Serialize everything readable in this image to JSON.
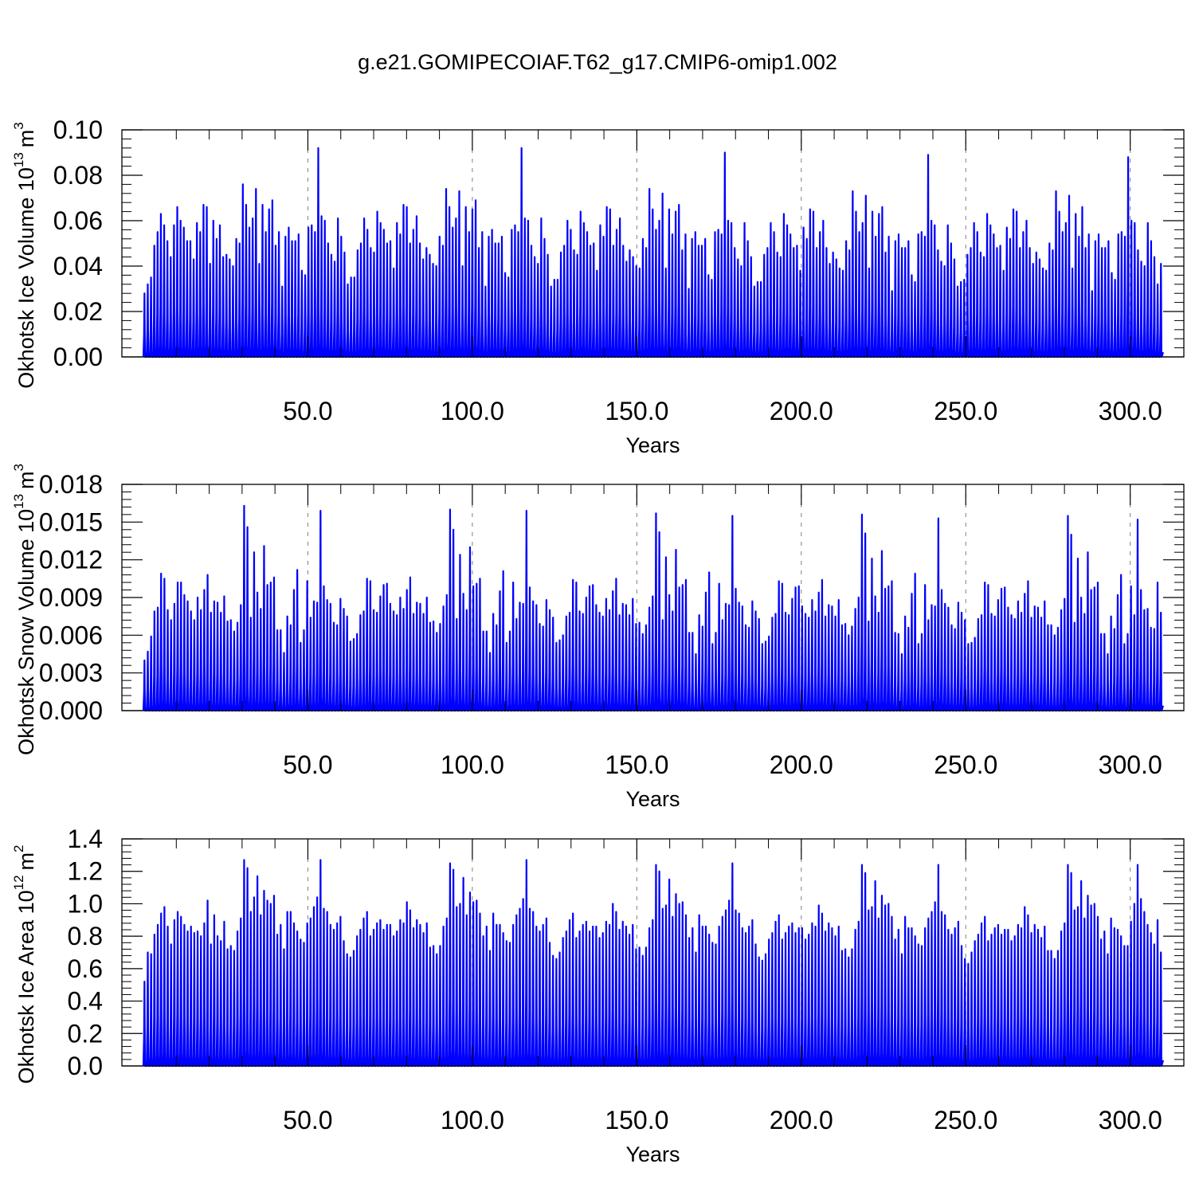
{
  "title": "g.e21.GOMIPECOIAF.T62_g17.CMIP6-omip1.002",
  "colors": {
    "series": "#0000ff",
    "axis": "#000000",
    "grid": "#808080",
    "background": "#ffffff"
  },
  "chart_data": [
    {
      "type": "line",
      "ylabel": "Okhotsk Ice Volume 10",
      "ylabel_exponent": "13",
      "ylabel_unit": "m",
      "ylabel_unit_exponent": "3",
      "xlabel": "Years",
      "xlim": [
        0,
        310
      ],
      "ylim": [
        0,
        0.1
      ],
      "yticks": [
        0.0,
        0.02,
        0.04,
        0.06,
        0.08,
        0.1
      ],
      "ytick_labels": [
        "0.00",
        "0.02",
        "0.04",
        "0.06",
        "0.08",
        "0.10"
      ],
      "xticks": [
        50,
        100,
        150,
        200,
        250,
        300
      ],
      "xtick_labels": [
        "50.0",
        "100.0",
        "150.0",
        "200.0",
        "250.0",
        "300.0"
      ],
      "grid": "dashed vertical at major x ticks",
      "annual_peaks": [
        0.028,
        0.032,
        0.035,
        0.049,
        0.055,
        0.063,
        0.058,
        0.051,
        0.044,
        0.058,
        0.066,
        0.06,
        0.057,
        0.051,
        0.051,
        0.043,
        0.059,
        0.055,
        0.067,
        0.066,
        0.041,
        0.06,
        0.052,
        0.058,
        0.044,
        0.045,
        0.043,
        0.04,
        0.052,
        0.05,
        0.076,
        0.067,
        0.057,
        0.061,
        0.074,
        0.041,
        0.067,
        0.055,
        0.065,
        0.069,
        0.049,
        0.055,
        0.031,
        0.053,
        0.057,
        0.051,
        0.051,
        0.054,
        0.038,
        0.036,
        0.057,
        0.058,
        0.055,
        0.092,
        0.062,
        0.06,
        0.05,
        0.045,
        0.042,
        0.061,
        0.053,
        0.046,
        0.032,
        0.035,
        0.035,
        0.047,
        0.05,
        0.061,
        0.056,
        0.048,
        0.046,
        0.064,
        0.059,
        0.056,
        0.05,
        0.051,
        0.039,
        0.059,
        0.054,
        0.067,
        0.066,
        0.05,
        0.056,
        0.062,
        0.05,
        0.043,
        0.048,
        0.045,
        0.041,
        0.04,
        0.053,
        0.049,
        0.074,
        0.066,
        0.057,
        0.061,
        0.073,
        0.04,
        0.066,
        0.055,
        0.065,
        0.069,
        0.048,
        0.055,
        0.031,
        0.053,
        0.056,
        0.05,
        0.05,
        0.053,
        0.037,
        0.035,
        0.056,
        0.058,
        0.055,
        0.092,
        0.061,
        0.06,
        0.049,
        0.044,
        0.041,
        0.061,
        0.052,
        0.045,
        0.031,
        0.034,
        0.034,
        0.046,
        0.049,
        0.06,
        0.056,
        0.047,
        0.045,
        0.064,
        0.059,
        0.055,
        0.049,
        0.05,
        0.038,
        0.058,
        0.053,
        0.066,
        0.065,
        0.049,
        0.056,
        0.061,
        0.049,
        0.042,
        0.047,
        0.044,
        0.04,
        0.039,
        0.052,
        0.048,
        0.074,
        0.065,
        0.056,
        0.06,
        0.072,
        0.039,
        0.065,
        0.054,
        0.064,
        0.067,
        0.047,
        0.054,
        0.03,
        0.052,
        0.055,
        0.049,
        0.049,
        0.052,
        0.036,
        0.034,
        0.055,
        0.056,
        0.054,
        0.09,
        0.06,
        0.059,
        0.048,
        0.043,
        0.04,
        0.059,
        0.051,
        0.044,
        0.031,
        0.033,
        0.033,
        0.045,
        0.048,
        0.059,
        0.055,
        0.046,
        0.044,
        0.063,
        0.058,
        0.054,
        0.048,
        0.049,
        0.038,
        0.057,
        0.052,
        0.065,
        0.064,
        0.048,
        0.055,
        0.06,
        0.048,
        0.041,
        0.046,
        0.043,
        0.039,
        0.038,
        0.051,
        0.047,
        0.073,
        0.064,
        0.055,
        0.059,
        0.071,
        0.039,
        0.064,
        0.053,
        0.063,
        0.066,
        0.046,
        0.053,
        0.029,
        0.051,
        0.054,
        0.048,
        0.048,
        0.051,
        0.036,
        0.033,
        0.054,
        0.055,
        0.053,
        0.089,
        0.06,
        0.058,
        0.047,
        0.042,
        0.04,
        0.058,
        0.05,
        0.043,
        0.031,
        0.033,
        0.034,
        0.045,
        0.048,
        0.059,
        0.055,
        0.046,
        0.044,
        0.063,
        0.058,
        0.054,
        0.048,
        0.049,
        0.038,
        0.057,
        0.052,
        0.065,
        0.064,
        0.048,
        0.055,
        0.06,
        0.048,
        0.041,
        0.046,
        0.043,
        0.039,
        0.038,
        0.05,
        0.047,
        0.073,
        0.064,
        0.055,
        0.059,
        0.071,
        0.039,
        0.063,
        0.053,
        0.066,
        0.048,
        0.054,
        0.029,
        0.051,
        0.054,
        0.048,
        0.048,
        0.051,
        0.037,
        0.034,
        0.054,
        0.055,
        0.053,
        0.088,
        0.06,
        0.059,
        0.047,
        0.042,
        0.04,
        0.059,
        0.051,
        0.044,
        0.032,
        0.041
      ]
    },
    {
      "type": "line",
      "ylabel": "Okhotsk Snow Volume 10",
      "ylabel_exponent": "13",
      "ylabel_unit": "m",
      "ylabel_unit_exponent": "3",
      "xlabel": "Years",
      "xlim": [
        0,
        310
      ],
      "ylim": [
        0,
        0.018
      ],
      "yticks": [
        0.0,
        0.003,
        0.006,
        0.009,
        0.012,
        0.015,
        0.018
      ],
      "ytick_labels": [
        "0.000",
        "0.003",
        "0.006",
        "0.009",
        "0.012",
        "0.015",
        "0.018"
      ],
      "xticks": [
        50,
        100,
        150,
        200,
        250,
        300
      ],
      "xtick_labels": [
        "50.0",
        "100.0",
        "150.0",
        "200.0",
        "250.0",
        "300.0"
      ],
      "grid": "dashed vertical at major x ticks",
      "annual_peaks": [
        0.004,
        0.0047,
        0.0059,
        0.0079,
        0.0082,
        0.0109,
        0.0105,
        0.008,
        0.0072,
        0.0085,
        0.0102,
        0.0102,
        0.0092,
        0.0087,
        0.0079,
        0.0072,
        0.009,
        0.008,
        0.0096,
        0.0108,
        0.0078,
        0.0087,
        0.0086,
        0.0078,
        0.0091,
        0.0071,
        0.0072,
        0.0063,
        0.007,
        0.0084,
        0.0163,
        0.0146,
        0.0074,
        0.0126,
        0.0094,
        0.0081,
        0.0131,
        0.01,
        0.0102,
        0.0106,
        0.0064,
        0.0064,
        0.0046,
        0.0075,
        0.0068,
        0.0096,
        0.0112,
        0.0054,
        0.0064,
        0.0103,
        0.0074,
        0.0087,
        0.0086,
        0.0159,
        0.0099,
        0.0088,
        0.0085,
        0.007,
        0.0068,
        0.0089,
        0.0081,
        0.0075,
        0.0055,
        0.0057,
        0.0061,
        0.0076,
        0.0079,
        0.0105,
        0.0103,
        0.008,
        0.0078,
        0.0091,
        0.01,
        0.0101,
        0.0085,
        0.0079,
        0.0076,
        0.009,
        0.0081,
        0.0096,
        0.0106,
        0.0077,
        0.0086,
        0.0085,
        0.0077,
        0.009,
        0.007,
        0.0071,
        0.0062,
        0.0069,
        0.0083,
        0.0092,
        0.016,
        0.0144,
        0.0073,
        0.0124,
        0.0093,
        0.008,
        0.013,
        0.0099,
        0.0101,
        0.0105,
        0.0063,
        0.0063,
        0.0046,
        0.0077,
        0.0068,
        0.0095,
        0.0111,
        0.0054,
        0.0063,
        0.0102,
        0.0073,
        0.0086,
        0.0085,
        0.0159,
        0.0098,
        0.0087,
        0.0084,
        0.0069,
        0.0067,
        0.0088,
        0.008,
        0.0074,
        0.0054,
        0.0056,
        0.006,
        0.0075,
        0.0078,
        0.0104,
        0.0102,
        0.0079,
        0.0077,
        0.009,
        0.0099,
        0.01,
        0.0084,
        0.0078,
        0.0075,
        0.0089,
        0.008,
        0.0095,
        0.0105,
        0.0076,
        0.0085,
        0.0084,
        0.0076,
        0.0089,
        0.0069,
        0.007,
        0.0061,
        0.0068,
        0.0082,
        0.0091,
        0.0157,
        0.0142,
        0.0072,
        0.0122,
        0.0092,
        0.0079,
        0.0128,
        0.0098,
        0.01,
        0.0104,
        0.0062,
        0.0062,
        0.0045,
        0.0076,
        0.0067,
        0.0094,
        0.011,
        0.0053,
        0.0062,
        0.0101,
        0.0072,
        0.0085,
        0.0084,
        0.0155,
        0.0097,
        0.0086,
        0.0083,
        0.0068,
        0.0066,
        0.0087,
        0.0079,
        0.0073,
        0.0053,
        0.0055,
        0.0059,
        0.0074,
        0.0077,
        0.0103,
        0.0101,
        0.0078,
        0.0076,
        0.0089,
        0.0098,
        0.0099,
        0.0083,
        0.0077,
        0.0074,
        0.0088,
        0.0079,
        0.0094,
        0.0104,
        0.0075,
        0.0084,
        0.0083,
        0.0075,
        0.0088,
        0.0068,
        0.0069,
        0.006,
        0.0067,
        0.0081,
        0.009,
        0.0156,
        0.0141,
        0.0071,
        0.0121,
        0.0091,
        0.0078,
        0.0127,
        0.0097,
        0.0099,
        0.0103,
        0.0062,
        0.0061,
        0.0045,
        0.0075,
        0.0066,
        0.0093,
        0.0109,
        0.0053,
        0.0061,
        0.01,
        0.0072,
        0.0084,
        0.0083,
        0.0153,
        0.0096,
        0.0085,
        0.0082,
        0.0068,
        0.0065,
        0.0086,
        0.0078,
        0.0072,
        0.0053,
        0.0054,
        0.0058,
        0.0073,
        0.0076,
        0.0102,
        0.01,
        0.0077,
        0.0075,
        0.0088,
        0.0097,
        0.0098,
        0.0082,
        0.0076,
        0.0073,
        0.0087,
        0.0078,
        0.0093,
        0.0103,
        0.0074,
        0.0083,
        0.0082,
        0.0074,
        0.0087,
        0.0068,
        0.0068,
        0.006,
        0.0066,
        0.008,
        0.0089,
        0.0155,
        0.014,
        0.007,
        0.0121,
        0.009,
        0.0077,
        0.0126,
        0.0096,
        0.0098,
        0.0102,
        0.0061,
        0.0061,
        0.0045,
        0.0075,
        0.0065,
        0.0092,
        0.0108,
        0.0053,
        0.0061,
        0.0099,
        0.0076,
        0.0152,
        0.0096,
        0.008,
        0.0081,
        0.0066,
        0.0065,
        0.0102,
        0.0078
      ]
    },
    {
      "type": "line",
      "ylabel": "Okhotsk Ice Area 10",
      "ylabel_exponent": "12",
      "ylabel_unit": "m",
      "ylabel_unit_exponent": "2",
      "xlabel": "Years",
      "xlim": [
        0,
        310
      ],
      "ylim": [
        0,
        1.4
      ],
      "yticks": [
        0.0,
        0.2,
        0.4,
        0.6,
        0.8,
        1.0,
        1.2,
        1.4
      ],
      "ytick_labels": [
        "0.0",
        "0.2",
        "0.4",
        "0.6",
        "0.8",
        "1.0",
        "1.2",
        "1.4"
      ],
      "xticks": [
        50,
        100,
        150,
        200,
        250,
        300
      ],
      "xtick_labels": [
        "50.0",
        "100.0",
        "150.0",
        "200.0",
        "250.0",
        "300.0"
      ],
      "grid": "dashed vertical at major x ticks",
      "annual_peaks": [
        0.52,
        0.7,
        0.69,
        0.81,
        0.87,
        0.94,
        0.98,
        0.86,
        0.75,
        0.9,
        0.95,
        0.92,
        0.87,
        0.83,
        0.86,
        0.82,
        0.83,
        0.8,
        0.88,
        1.02,
        0.75,
        0.93,
        0.8,
        0.77,
        0.89,
        0.72,
        0.74,
        0.71,
        0.83,
        0.91,
        1.27,
        1.22,
        0.95,
        1.04,
        1.17,
        0.93,
        1.08,
        1.02,
        1.0,
        1.05,
        0.81,
        0.87,
        0.72,
        0.95,
        0.95,
        0.88,
        0.83,
        0.78,
        0.76,
        0.88,
        0.91,
        0.98,
        1.04,
        1.27,
        0.97,
        0.95,
        0.87,
        0.84,
        0.88,
        0.92,
        0.77,
        0.69,
        0.67,
        0.71,
        0.8,
        0.84,
        0.91,
        0.95,
        0.8,
        0.84,
        0.88,
        0.9,
        0.84,
        0.87,
        0.87,
        0.8,
        0.83,
        0.9,
        0.88,
        1.01,
        0.96,
        0.85,
        0.9,
        0.87,
        0.82,
        0.88,
        0.73,
        0.74,
        0.69,
        0.74,
        0.86,
        0.91,
        1.25,
        1.21,
        0.98,
        1.0,
        1.16,
        0.93,
        1.07,
        1.01,
        1.02,
        0.94,
        0.8,
        0.86,
        0.71,
        0.94,
        0.87,
        0.87,
        0.82,
        0.77,
        0.76,
        0.87,
        0.93,
        0.97,
        1.03,
        1.27,
        0.97,
        0.95,
        0.86,
        0.83,
        0.87,
        0.91,
        0.76,
        0.68,
        0.66,
        0.7,
        0.79,
        0.83,
        0.9,
        0.94,
        0.79,
        0.83,
        0.87,
        0.89,
        0.83,
        0.86,
        0.86,
        0.79,
        0.82,
        0.89,
        0.87,
        1.0,
        0.95,
        0.84,
        0.89,
        0.86,
        0.81,
        0.87,
        0.72,
        0.73,
        0.68,
        0.73,
        0.85,
        0.9,
        1.24,
        1.2,
        0.97,
        0.99,
        1.15,
        0.92,
        1.06,
        1.0,
        1.01,
        0.93,
        0.79,
        0.85,
        0.7,
        0.93,
        0.86,
        0.86,
        0.81,
        0.76,
        0.75,
        0.86,
        0.92,
        0.96,
        1.02,
        1.25,
        0.96,
        0.94,
        0.85,
        0.82,
        0.86,
        0.9,
        0.75,
        0.67,
        0.65,
        0.69,
        0.78,
        0.82,
        0.89,
        0.93,
        0.78,
        0.82,
        0.86,
        0.88,
        0.82,
        0.85,
        0.85,
        0.78,
        0.81,
        0.88,
        0.86,
        0.99,
        0.94,
        0.83,
        0.88,
        0.85,
        0.8,
        0.86,
        0.71,
        0.72,
        0.67,
        0.72,
        0.84,
        0.89,
        1.24,
        1.19,
        0.96,
        0.98,
        1.14,
        0.91,
        1.05,
        0.99,
        1.0,
        0.92,
        0.78,
        0.84,
        0.69,
        0.92,
        0.85,
        0.85,
        0.8,
        0.75,
        0.74,
        0.85,
        0.91,
        0.95,
        1.01,
        1.24,
        0.95,
        0.93,
        0.84,
        0.81,
        0.85,
        0.89,
        0.74,
        0.66,
        0.63,
        0.7,
        0.77,
        0.81,
        0.88,
        0.92,
        0.77,
        0.81,
        0.85,
        0.87,
        0.81,
        0.84,
        0.84,
        0.77,
        0.8,
        0.87,
        0.85,
        0.98,
        0.93,
        0.82,
        0.87,
        0.84,
        0.79,
        0.86,
        0.71,
        0.71,
        0.66,
        0.71,
        0.83,
        0.88,
        1.24,
        1.19,
        0.96,
        0.98,
        1.14,
        0.91,
        1.05,
        0.99,
        1.0,
        0.92,
        0.78,
        0.83,
        0.69,
        0.91,
        0.85,
        0.84,
        0.8,
        0.74,
        0.74,
        0.89,
        1.0,
        1.24,
        1.03,
        0.95,
        0.87,
        0.82,
        0.75,
        0.9,
        0.7
      ]
    }
  ]
}
